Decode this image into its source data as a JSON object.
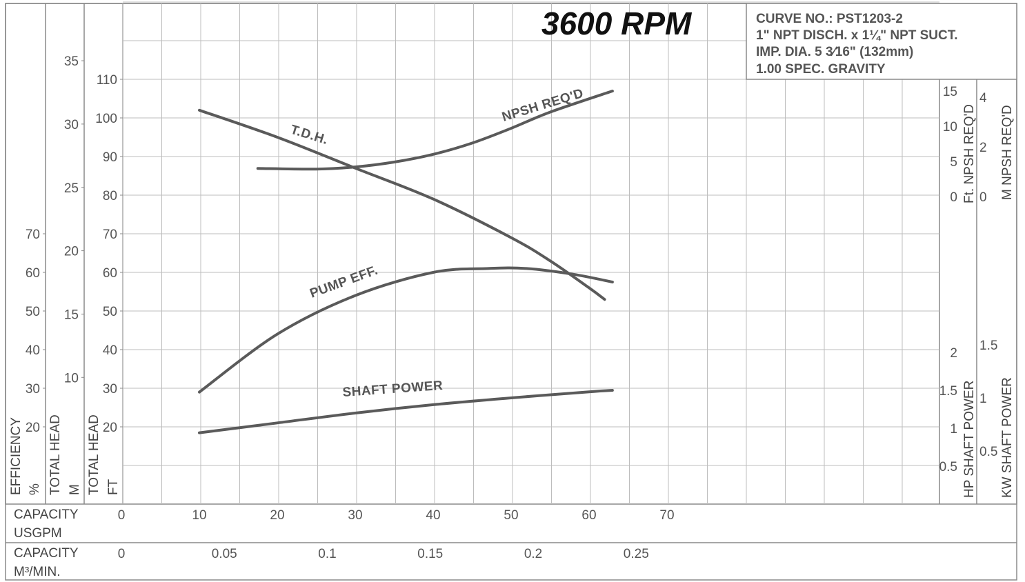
{
  "title": "3600 RPM",
  "infobox": {
    "lines": [
      "CURVE NO.: PST1203-2",
      "1\" NPT DISCH. x 1¼\" NPT SUCT.",
      "IMP. DIA. 5 3⁄16\" (132mm)",
      "1.00 SPEC. GRAVITY"
    ]
  },
  "chart_data": {
    "type": "line",
    "title": "3600 RPM",
    "grid": true,
    "xlabel": "CAPACITY USGPM",
    "xlim": [
      0,
      105
    ],
    "x_ticks": [
      "0",
      "10",
      "20",
      "30",
      "40",
      "50",
      "60",
      "70"
    ],
    "x2label": "CAPACITY M³/MIN.",
    "x2_ticks": [
      "0",
      "0.05",
      "0.1",
      "0.15",
      "0.2",
      "0.25"
    ],
    "axes": {
      "efficiency": {
        "label_top": "EFFICIENCY",
        "unit": "%",
        "ticks": [
          "20",
          "30",
          "40",
          "50",
          "60",
          "70"
        ]
      },
      "head_m": {
        "label_top": "TOTAL HEAD",
        "unit": "M",
        "ticks": [
          "10",
          "15",
          "20",
          "25",
          "30",
          "35"
        ]
      },
      "head_ft": {
        "label_top": "TOTAL HEAD",
        "unit": "FT",
        "ticks": [
          "20",
          "30",
          "40",
          "50",
          "60",
          "70",
          "80",
          "90",
          "100",
          "110"
        ],
        "ylim": [
          0,
          120
        ]
      },
      "npsh_ft": {
        "label": "Ft. NPSH REQ'D",
        "ticks": [
          "0",
          "5",
          "10",
          "15"
        ]
      },
      "npsh_m": {
        "label": "M NPSH REQ'D",
        "ticks": [
          "0",
          "2",
          "4"
        ]
      },
      "hp": {
        "label": "HP SHAFT POWER",
        "ticks": [
          "0.5",
          "1",
          "1.5",
          "2"
        ]
      },
      "kw": {
        "label": "KW SHAFT POWER",
        "ticks": [
          "0.5",
          "1",
          "1.5"
        ]
      }
    },
    "series": [
      {
        "name": "T.D.H.",
        "axis": "head_ft",
        "x": [
          10,
          20,
          30,
          40,
          50,
          55,
          60,
          62
        ],
        "y": [
          102,
          95,
          87,
          79,
          69,
          63,
          56,
          53
        ]
      },
      {
        "name": "NPSH REQ'D",
        "axis": "npsh_ft",
        "x": [
          17.5,
          25,
          30,
          35,
          40,
          45,
          50,
          55,
          63
        ],
        "y": [
          4.0,
          3.9,
          4.2,
          4.9,
          6.0,
          7.6,
          9.7,
          12.0,
          15.0
        ]
      },
      {
        "name": "PUMP EFF.",
        "axis": "efficiency",
        "x": [
          10,
          20,
          30,
          40,
          47,
          52,
          58,
          63
        ],
        "y": [
          29,
          44,
          54,
          60,
          61,
          61,
          59.5,
          57.5
        ]
      },
      {
        "name": "SHAFT POWER",
        "axis": "hp",
        "x": [
          10,
          20,
          30,
          40,
          50,
          60,
          63
        ],
        "y": [
          0.94,
          1.07,
          1.2,
          1.31,
          1.4,
          1.48,
          1.5
        ]
      }
    ]
  }
}
